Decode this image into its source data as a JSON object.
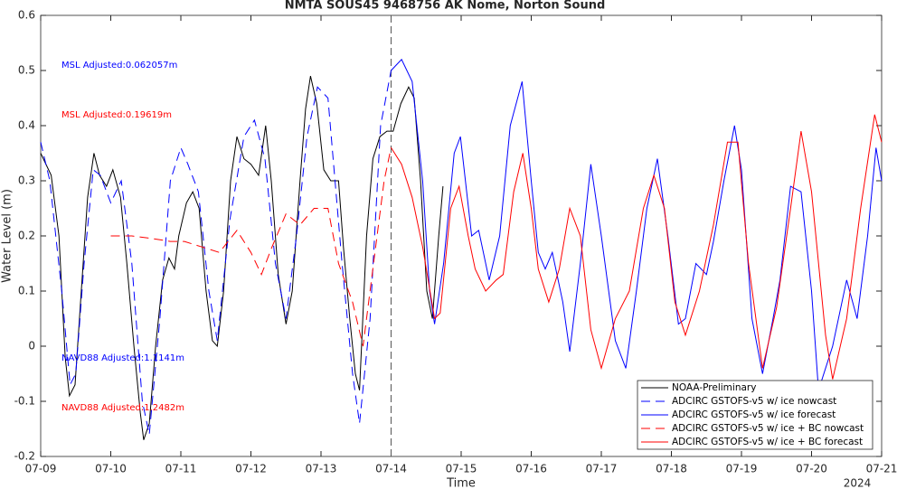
{
  "chart_data": {
    "type": "line",
    "title": "NMTA  SOUS45 9468756 AK Nome, Norton Sound",
    "x_label": "Time",
    "y_label": "Water Level (m)",
    "xlim": [
      0,
      12
    ],
    "ylim": [
      -0.2,
      0.6
    ],
    "xticks": [
      {
        "value": 0,
        "label": "07-09"
      },
      {
        "value": 1,
        "label": "07-10"
      },
      {
        "value": 2,
        "label": "07-11"
      },
      {
        "value": 3,
        "label": "07-12"
      },
      {
        "value": 4,
        "label": "07-13"
      },
      {
        "value": 5,
        "label": "07-14"
      },
      {
        "value": 6,
        "label": "07-15"
      },
      {
        "value": 7,
        "label": "07-16"
      },
      {
        "value": 8,
        "label": "07-17"
      },
      {
        "value": 9,
        "label": "07-18"
      },
      {
        "value": 10,
        "label": "07-19"
      },
      {
        "value": 11,
        "label": "07-20"
      },
      {
        "value": 12,
        "label": "07-21"
      }
    ],
    "x_year_label": "2024",
    "yticks": [
      -0.2,
      -0.1,
      0,
      0.1,
      0.2,
      0.3,
      0.4,
      0.5,
      0.6
    ],
    "vline": 5,
    "legend": "lower right",
    "annotations": [
      {
        "text": "MSL Adjusted:0.062057m",
        "color": "#0000ff"
      },
      {
        "text": "MSL Adjusted:0.19619m",
        "color": "#ff0000"
      },
      {
        "text": "NAVD88 Adjusted:1.1141m",
        "color": "#0000ff"
      },
      {
        "text": "NAVD88 Adjusted:1.2482m",
        "color": "#ff0000"
      }
    ],
    "series": [
      {
        "name": "NOAA-Preliminary",
        "color": "#000000",
        "dash": false,
        "x": [
          0,
          0.15,
          0.26,
          0.35,
          0.41,
          0.49,
          0.58,
          0.67,
          0.76,
          0.84,
          0.94,
          1.03,
          1.14,
          1.23,
          1.33,
          1.42,
          1.47,
          1.55,
          1.64,
          1.74,
          1.83,
          1.91,
          1.97,
          2.08,
          2.17,
          2.26,
          2.36,
          2.45,
          2.52,
          2.61,
          2.71,
          2.8,
          2.9,
          3.0,
          3.11,
          3.21,
          3.29,
          3.39,
          3.5,
          3.59,
          3.7,
          3.78,
          3.85,
          3.94,
          4.04,
          4.14,
          4.25,
          4.32,
          4.41,
          4.49,
          4.55,
          4.65,
          4.74,
          4.84,
          4.94,
          5.03,
          5.14,
          5.25,
          5.33,
          5.42,
          5.51,
          5.59,
          5.68,
          5.74
        ],
        "values": [
          0.35,
          0.31,
          0.2,
          -0.02,
          -0.09,
          -0.07,
          0.1,
          0.27,
          0.35,
          0.31,
          0.29,
          0.32,
          0.27,
          0.15,
          0.0,
          -0.12,
          -0.17,
          -0.14,
          0.0,
          0.12,
          0.16,
          0.14,
          0.2,
          0.26,
          0.28,
          0.25,
          0.1,
          0.01,
          0.0,
          0.1,
          0.3,
          0.38,
          0.34,
          0.33,
          0.31,
          0.4,
          0.3,
          0.13,
          0.04,
          0.1,
          0.3,
          0.43,
          0.49,
          0.44,
          0.32,
          0.3,
          0.3,
          0.18,
          0.05,
          -0.05,
          -0.08,
          0.2,
          0.34,
          0.38,
          0.39,
          0.39,
          0.44,
          0.47,
          0.45,
          0.3,
          0.1,
          0.05,
          0.2,
          0.29
        ]
      },
      {
        "name": "ADCIRC GSTOFS-v5 w/ ice nowcast",
        "color": "#0000ff",
        "dash": true,
        "x": [
          0,
          0.13,
          0.3,
          0.42,
          0.5,
          0.62,
          0.75,
          0.85,
          1.0,
          1.15,
          1.3,
          1.45,
          1.55,
          1.7,
          1.85,
          2.0,
          2.1,
          2.25,
          2.4,
          2.52,
          2.7,
          2.9,
          3.05,
          3.2,
          3.35,
          3.5,
          3.65,
          3.8,
          3.95,
          4.1,
          4.3,
          4.45,
          4.55,
          4.7,
          4.85,
          5.0
        ],
        "values": [
          0.37,
          0.3,
          0.1,
          -0.07,
          -0.05,
          0.15,
          0.32,
          0.31,
          0.26,
          0.3,
          0.15,
          -0.1,
          -0.16,
          0.05,
          0.3,
          0.36,
          0.33,
          0.28,
          0.1,
          0.01,
          0.23,
          0.38,
          0.41,
          0.34,
          0.15,
          0.05,
          0.2,
          0.38,
          0.47,
          0.45,
          0.15,
          -0.05,
          -0.14,
          0.05,
          0.4,
          0.5
        ]
      },
      {
        "name": "ADCIRC GSTOFS-v5 w/ ice forecast",
        "color": "#0000ff",
        "dash": false,
        "x": [
          5.0,
          5.15,
          5.3,
          5.45,
          5.55,
          5.62,
          5.75,
          5.9,
          5.99,
          6.15,
          6.25,
          6.4,
          6.55,
          6.7,
          6.87,
          7.0,
          7.1,
          7.2,
          7.3,
          7.45,
          7.55,
          7.7,
          7.85,
          8.0,
          8.2,
          8.35,
          8.5,
          8.65,
          8.8,
          8.95,
          9.1,
          9.2,
          9.35,
          9.5,
          9.6,
          9.75,
          9.9,
          10.0,
          10.15,
          10.3,
          10.45,
          10.55,
          10.7,
          10.85,
          11.0,
          11.1,
          11.3,
          11.5,
          11.65,
          11.8,
          11.92,
          12.0
        ],
        "values": [
          0.5,
          0.52,
          0.48,
          0.3,
          0.1,
          0.04,
          0.15,
          0.35,
          0.38,
          0.2,
          0.21,
          0.12,
          0.2,
          0.4,
          0.48,
          0.3,
          0.17,
          0.14,
          0.17,
          0.08,
          -0.01,
          0.15,
          0.33,
          0.2,
          0.01,
          -0.04,
          0.1,
          0.25,
          0.34,
          0.2,
          0.04,
          0.05,
          0.15,
          0.13,
          0.19,
          0.3,
          0.4,
          0.32,
          0.05,
          -0.05,
          0.05,
          0.12,
          0.29,
          0.28,
          0.1,
          -0.08,
          0.0,
          0.12,
          0.05,
          0.2,
          0.36,
          0.3
        ]
      },
      {
        "name": "ADCIRC GSTOFS-v5 w/ ice + BC nowcast",
        "color": "#ff0000",
        "dash": true,
        "x": [
          1.0,
          1.3,
          1.6,
          1.85,
          2.05,
          2.3,
          2.55,
          2.8,
          3.0,
          3.15,
          3.3,
          3.5,
          3.7,
          3.9,
          4.1,
          4.25,
          4.45,
          4.6,
          4.75,
          4.9,
          5.0
        ],
        "values": [
          0.2,
          0.2,
          0.195,
          0.19,
          0.19,
          0.18,
          0.17,
          0.21,
          0.17,
          0.13,
          0.18,
          0.24,
          0.22,
          0.25,
          0.25,
          0.15,
          0.08,
          0.0,
          0.15,
          0.3,
          0.36
        ]
      },
      {
        "name": "ADCIRC GSTOFS-v5 w/ ice + BC forecast",
        "color": "#ff0000",
        "dash": false,
        "x": [
          5.0,
          5.15,
          5.3,
          5.45,
          5.62,
          5.7,
          5.85,
          5.97,
          6.1,
          6.2,
          6.35,
          6.5,
          6.6,
          6.75,
          6.88,
          7.0,
          7.1,
          7.25,
          7.4,
          7.55,
          7.7,
          7.85,
          8.0,
          8.2,
          8.4,
          8.6,
          8.75,
          8.9,
          9.05,
          9.2,
          9.4,
          9.6,
          9.8,
          9.95,
          10.1,
          10.3,
          10.5,
          10.7,
          10.85,
          11.0,
          11.2,
          11.3,
          11.5,
          11.7,
          11.9,
          12.0
        ],
        "values": [
          0.36,
          0.33,
          0.27,
          0.18,
          0.05,
          0.06,
          0.25,
          0.29,
          0.2,
          0.14,
          0.1,
          0.12,
          0.13,
          0.28,
          0.35,
          0.25,
          0.14,
          0.08,
          0.14,
          0.25,
          0.2,
          0.03,
          -0.04,
          0.05,
          0.1,
          0.25,
          0.31,
          0.25,
          0.08,
          0.02,
          0.1,
          0.22,
          0.37,
          0.37,
          0.15,
          -0.04,
          0.07,
          0.25,
          0.39,
          0.28,
          0.02,
          -0.06,
          0.05,
          0.25,
          0.42,
          0.37
        ]
      }
    ]
  }
}
